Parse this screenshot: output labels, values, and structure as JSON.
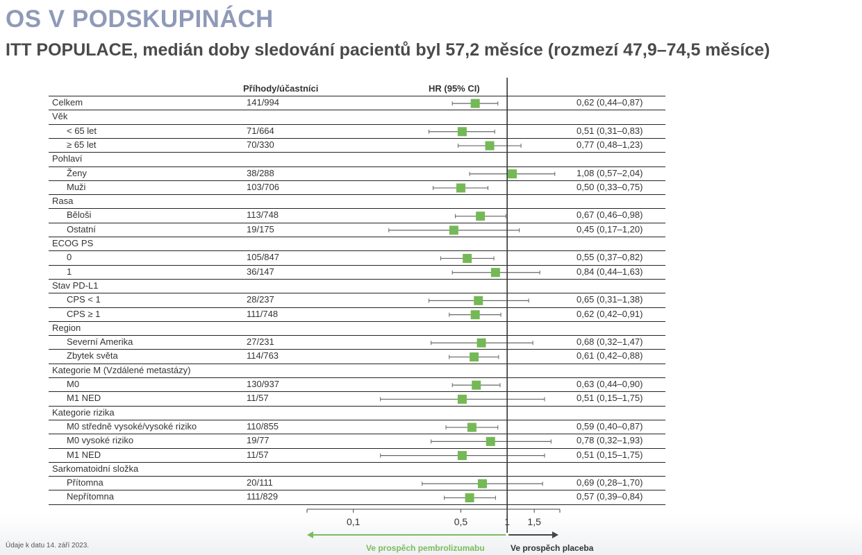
{
  "title": "OS V PODSKUPINÁCH",
  "subtitle": "ITT POPULACE, medián doby sledování pacientů byl 57,2 měsíce (rozmezí 47,9–74,5 měsíce)",
  "columns": {
    "events": "Příhody/účastníci",
    "hr": "HR (95% CI)"
  },
  "footnote": "Údaje k datu 14. září 2023.",
  "favor": {
    "left": "Ve prospěch pembrolizumabu",
    "right": "Ve prospěch placeba"
  },
  "colors": {
    "marker": "#74b955",
    "favor_left": "#7cbb5a",
    "title": "#8f9ab8"
  },
  "chart_data": {
    "type": "forest",
    "x_scale": "log",
    "xlim": [
      0.05,
      2.2
    ],
    "reference_line": 1,
    "ticks": [
      {
        "value": 0.1,
        "label": "0,1"
      },
      {
        "value": 0.5,
        "label": "0,5"
      },
      {
        "value": 1,
        "label": "1"
      },
      {
        "value": 1.5,
        "label": "1,5"
      }
    ],
    "rows": [
      {
        "label": "Celkem",
        "indent": false,
        "events": "141/994",
        "hr_text": "0,62 (0,44–0,87)",
        "hr": 0.62,
        "lo": 0.44,
        "hi": 0.87
      },
      {
        "label": "Věk",
        "indent": false,
        "events": "",
        "hr_text": ""
      },
      {
        "label": "< 65 let",
        "indent": true,
        "events": "71/664",
        "hr_text": "0,51 (0,31–0,83)",
        "hr": 0.51,
        "lo": 0.31,
        "hi": 0.83
      },
      {
        "label": "≥ 65 let",
        "indent": true,
        "events": "70/330",
        "hr_text": "0,77 (0,48–1,23)",
        "hr": 0.77,
        "lo": 0.48,
        "hi": 1.23
      },
      {
        "label": "Pohlaví",
        "indent": false,
        "events": "",
        "hr_text": ""
      },
      {
        "label": "Ženy",
        "indent": true,
        "events": "38/288",
        "hr_text": "1,08 (0,57–2,04)",
        "hr": 1.08,
        "lo": 0.57,
        "hi": 2.04
      },
      {
        "label": "Muži",
        "indent": true,
        "events": "103/706",
        "hr_text": "0,50 (0,33–0,75)",
        "hr": 0.5,
        "lo": 0.33,
        "hi": 0.75
      },
      {
        "label": "Rasa",
        "indent": false,
        "events": "",
        "hr_text": ""
      },
      {
        "label": "Běloši",
        "indent": true,
        "events": "113/748",
        "hr_text": "0,67 (0,46–0,98)",
        "hr": 0.67,
        "lo": 0.46,
        "hi": 0.98
      },
      {
        "label": "Ostatní",
        "indent": true,
        "events": "19/175",
        "hr_text": "0,45 (0,17–1,20)",
        "hr": 0.45,
        "lo": 0.17,
        "hi": 1.2
      },
      {
        "label": "ECOG PS",
        "indent": false,
        "events": "",
        "hr_text": ""
      },
      {
        "label": "0",
        "indent": true,
        "events": "105/847",
        "hr_text": "0,55 (0,37–0,82)",
        "hr": 0.55,
        "lo": 0.37,
        "hi": 0.82
      },
      {
        "label": "1",
        "indent": true,
        "events": "36/147",
        "hr_text": "0,84 (0,44–1,63)",
        "hr": 0.84,
        "lo": 0.44,
        "hi": 1.63
      },
      {
        "label": "Stav PD-L1",
        "indent": false,
        "events": "",
        "hr_text": ""
      },
      {
        "label": "CPS < 1",
        "indent": true,
        "events": "28/237",
        "hr_text": "0,65 (0,31–1,38)",
        "hr": 0.65,
        "lo": 0.31,
        "hi": 1.38
      },
      {
        "label": "CPS ≥ 1",
        "indent": true,
        "events": "111/748",
        "hr_text": "0,62 (0,42–0,91)",
        "hr": 0.62,
        "lo": 0.42,
        "hi": 0.91
      },
      {
        "label": "Region",
        "indent": false,
        "events": "",
        "hr_text": ""
      },
      {
        "label": "Severní Amerika",
        "indent": true,
        "events": "27/231",
        "hr_text": "0,68 (0,32–1,47)",
        "hr": 0.68,
        "lo": 0.32,
        "hi": 1.47
      },
      {
        "label": "Zbytek světa",
        "indent": true,
        "events": "114/763",
        "hr_text": "0,61 (0,42–0,88)",
        "hr": 0.61,
        "lo": 0.42,
        "hi": 0.88
      },
      {
        "label": "Kategorie M (Vzdálené metastázy)",
        "indent": false,
        "events": "",
        "hr_text": ""
      },
      {
        "label": "M0",
        "indent": true,
        "events": "130/937",
        "hr_text": "0,63 (0,44–0,90)",
        "hr": 0.63,
        "lo": 0.44,
        "hi": 0.9
      },
      {
        "label": "M1 NED",
        "indent": true,
        "events": "11/57",
        "hr_text": "0,51 (0,15–1,75)",
        "hr": 0.51,
        "lo": 0.15,
        "hi": 1.75
      },
      {
        "label": "Kategorie rizika",
        "indent": false,
        "events": "",
        "hr_text": ""
      },
      {
        "label": "M0 středně vysoké/vysoké riziko",
        "indent": true,
        "events": "110/855",
        "hr_text": "0,59 (0,40–0,87)",
        "hr": 0.59,
        "lo": 0.4,
        "hi": 0.87
      },
      {
        "label": "M0 vysoké riziko",
        "indent": true,
        "events": "19/77",
        "hr_text": "0,78 (0,32–1,93)",
        "hr": 0.78,
        "lo": 0.32,
        "hi": 1.93
      },
      {
        "label": "M1 NED",
        "indent": true,
        "events": "11/57",
        "hr_text": "0,51 (0,15–1,75)",
        "hr": 0.51,
        "lo": 0.15,
        "hi": 1.75
      },
      {
        "label": "Sarkomatoidní složka",
        "indent": false,
        "events": "",
        "hr_text": ""
      },
      {
        "label": "Přítomna",
        "indent": true,
        "events": "20/111",
        "hr_text": "0,69 (0,28–1,70)",
        "hr": 0.69,
        "lo": 0.28,
        "hi": 1.7
      },
      {
        "label": "Nepřítomna",
        "indent": true,
        "events": "111/829",
        "hr_text": "0,57 (0,39–0,84)",
        "hr": 0.57,
        "lo": 0.39,
        "hi": 0.84
      }
    ]
  }
}
